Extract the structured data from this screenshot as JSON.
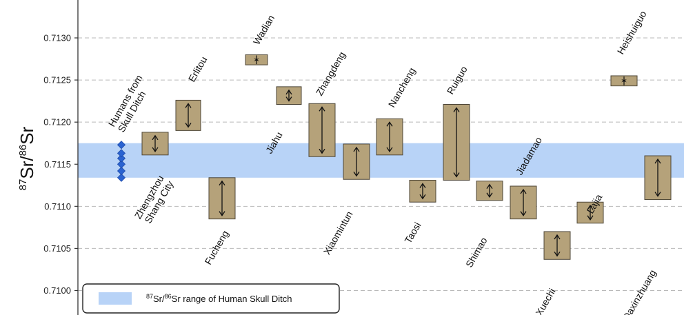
{
  "chart_data": {
    "type": "range-box",
    "ylabel": {
      "iso_a": "87",
      "el_a": "Sr/",
      "iso_b": "86",
      "el_b": "Sr"
    },
    "ylim": [
      0.71,
      0.71335
    ],
    "yticks": [
      "0.7100",
      "0.7105",
      "0.7110",
      "0.7115",
      "0.7120",
      "0.7125",
      "0.7130"
    ],
    "grid": true,
    "colors": {
      "box": "#b5a27a",
      "box_stroke": "#4d4637",
      "band": "#b8d3f7",
      "diamond": "#2a63d1",
      "grid": "#b9b9b9"
    },
    "band": {
      "low": 0.71134,
      "high": 0.71175
    },
    "human_points": [
      0.71134,
      0.71142,
      0.7115,
      0.71157,
      0.71163,
      0.71173
    ],
    "human_label": [
      "Humans from",
      "Skull Ditch"
    ],
    "ranges": [
      {
        "name": "Zhengzhou Shang City",
        "low": 0.71161,
        "high": 0.71188,
        "lines": [
          "Zhengzhou",
          "Shang City"
        ]
      },
      {
        "name": "Erlitou",
        "low": 0.7119,
        "high": 0.71226,
        "lines": [
          "Erlitou"
        ]
      },
      {
        "name": "Fucheng",
        "low": 0.71085,
        "high": 0.71134,
        "lines": [
          "Fucheng"
        ]
      },
      {
        "name": "Wadian",
        "low": 0.71268,
        "high": 0.7128,
        "lines": [
          "Wadian"
        ],
        "marker": "star"
      },
      {
        "name": "Jiahu",
        "low": 0.71221,
        "high": 0.71242,
        "lines": [
          "Jiahu"
        ]
      },
      {
        "name": "Zhangdeng",
        "low": 0.71159,
        "high": 0.71222,
        "lines": [
          "Zhangdeng"
        ]
      },
      {
        "name": "Xiaomintun",
        "low": 0.71132,
        "high": 0.71174,
        "lines": [
          "Xiaomintun"
        ]
      },
      {
        "name": "Nancheng",
        "low": 0.71161,
        "high": 0.71204,
        "lines": [
          "Nancheng"
        ]
      },
      {
        "name": "Taosi",
        "low": 0.71105,
        "high": 0.71131,
        "lines": [
          "Taosi"
        ]
      },
      {
        "name": "Ruiguo",
        "low": 0.71131,
        "high": 0.71221,
        "lines": [
          "Ruiguo"
        ]
      },
      {
        "name": "Shimao",
        "low": 0.71107,
        "high": 0.7113,
        "lines": [
          "Shimao"
        ]
      },
      {
        "name": "Jiadamao",
        "low": 0.71085,
        "high": 0.71124,
        "lines": [
          "Jiadamao"
        ]
      },
      {
        "name": "Xuechi",
        "low": 0.71037,
        "high": 0.7107,
        "lines": [
          "Xuechi"
        ]
      },
      {
        "name": "Lajia",
        "low": 0.7108,
        "high": 0.71105,
        "lines": [
          "Lajia"
        ]
      },
      {
        "name": "Heishuiguo",
        "low": 0.71243,
        "high": 0.71255,
        "lines": [
          "Heishuiguo"
        ],
        "marker": "star"
      },
      {
        "name": "Daxinzhuang",
        "low": 0.71108,
        "high": 0.7116,
        "lines": [
          "Daxinzhuang"
        ]
      }
    ],
    "legend": {
      "iso_a": "87",
      "el_a": "Sr/",
      "iso_b": "86",
      "el_b": "Sr range of Human Skull Ditch"
    }
  }
}
